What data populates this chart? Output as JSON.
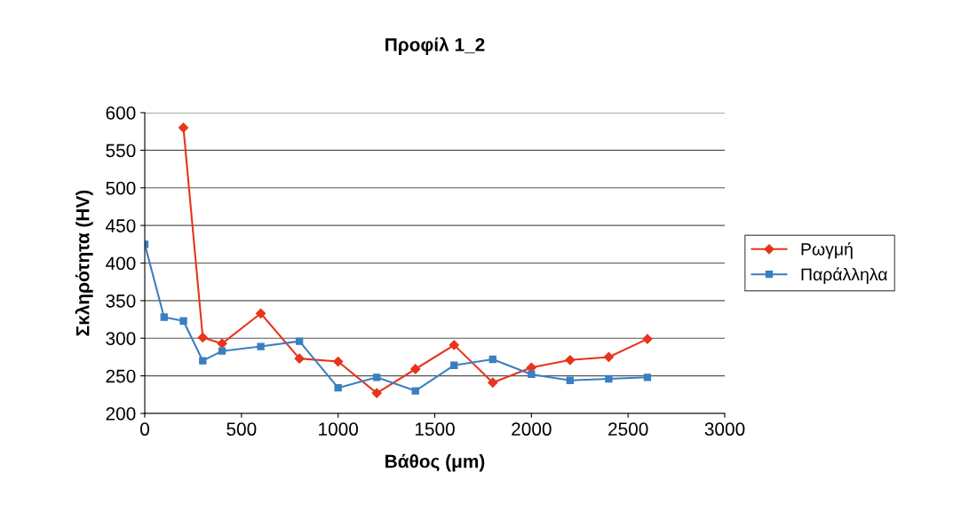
{
  "chart_data": {
    "type": "line",
    "title": "Προφίλ 1_2",
    "xlabel": "Βάθος (μm)",
    "ylabel": "Σκληρότητα (HV)",
    "xlim": [
      0,
      3000
    ],
    "xticks": [
      0,
      500,
      1000,
      1500,
      2000,
      2500,
      3000
    ],
    "ylim": [
      200,
      600
    ],
    "yticks": [
      200,
      250,
      300,
      350,
      400,
      450,
      500,
      550,
      600
    ],
    "grid": "y",
    "legend": "right",
    "series": [
      {
        "name": "Ρωγμή",
        "color": "#e8341c",
        "marker": "diamond",
        "x": [
          200,
          300,
          400,
          600,
          800,
          1000,
          1200,
          1400,
          1600,
          1800,
          2000,
          2200,
          2400,
          2600
        ],
        "values": [
          580,
          301,
          293,
          333,
          273,
          269,
          227,
          259,
          291,
          241,
          261,
          271,
          275,
          299
        ]
      },
      {
        "name": "Παράλληλα",
        "color": "#3a7fc1",
        "marker": "square",
        "x": [
          0,
          100,
          200,
          300,
          400,
          600,
          800,
          1000,
          1200,
          1400,
          1600,
          1800,
          2000,
          2200,
          2400,
          2600
        ],
        "values": [
          425,
          328,
          323,
          270,
          283,
          289,
          296,
          234,
          248,
          230,
          264,
          272,
          252,
          244,
          246,
          248
        ]
      }
    ]
  }
}
